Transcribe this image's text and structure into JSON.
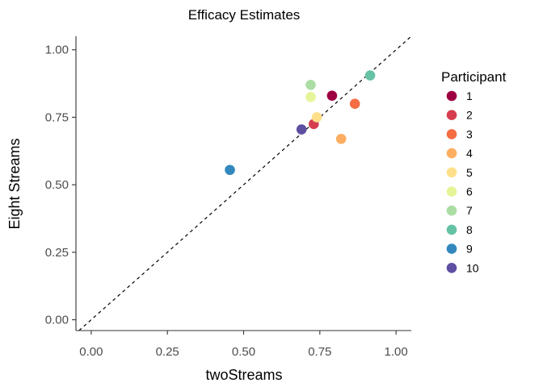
{
  "chart_data": {
    "type": "scatter",
    "title": "Efficacy Estimates",
    "xlabel": "twoStreams",
    "ylabel": "Eight Streams",
    "xlim": [
      -0.05,
      1.05
    ],
    "ylim": [
      -0.04,
      1.05
    ],
    "x_ticks": [
      0.0,
      0.25,
      0.5,
      0.75,
      1.0
    ],
    "x_tick_labels": [
      "0.00",
      "0.25",
      "0.50",
      "0.75",
      "1.00"
    ],
    "y_ticks": [
      0.0,
      0.25,
      0.5,
      0.75,
      1.0
    ],
    "y_tick_labels": [
      "0.00",
      "0.25",
      "0.50",
      "0.75",
      "1.00"
    ],
    "grid": false,
    "reference_line": "y = x (dashed)",
    "legend": {
      "title": "Participant",
      "position": "right"
    },
    "points": [
      {
        "participant": "1",
        "x": 0.79,
        "y": 0.83,
        "color": "#9E0142"
      },
      {
        "participant": "2",
        "x": 0.73,
        "y": 0.725,
        "color": "#D53E4F"
      },
      {
        "participant": "3",
        "x": 0.865,
        "y": 0.8,
        "color": "#F46D43"
      },
      {
        "participant": "4",
        "x": 0.82,
        "y": 0.67,
        "color": "#FDAE61"
      },
      {
        "participant": "5",
        "x": 0.74,
        "y": 0.75,
        "color": "#FEE08B"
      },
      {
        "participant": "6",
        "x": 0.72,
        "y": 0.825,
        "color": "#E6F598"
      },
      {
        "participant": "7",
        "x": 0.72,
        "y": 0.87,
        "color": "#ABDDA4"
      },
      {
        "participant": "8",
        "x": 0.915,
        "y": 0.905,
        "color": "#66C2A5"
      },
      {
        "participant": "9",
        "x": 0.455,
        "y": 0.555,
        "color": "#3288BD"
      },
      {
        "participant": "10",
        "x": 0.69,
        "y": 0.705,
        "color": "#5E4FA2"
      }
    ]
  }
}
